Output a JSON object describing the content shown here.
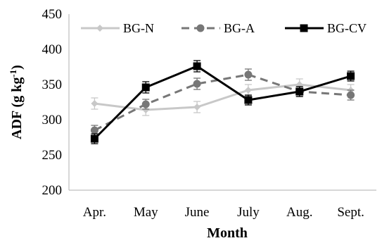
{
  "chart_data": {
    "type": "line",
    "title": "",
    "xlabel": "Month",
    "ylabel": "ADF (g kg",
    "ylabel_sup": "-1",
    "ylabel_end": ")",
    "categories": [
      "Apr.",
      "May",
      "June",
      "July",
      "Aug.",
      "Sept."
    ],
    "ylim": [
      200,
      450
    ],
    "yticks": [
      "200",
      "250",
      "300",
      "350",
      "400",
      "450"
    ],
    "grid": false,
    "legend_position": "top",
    "series": [
      {
        "name": "BG-N",
        "values": [
          323,
          314,
          318,
          342,
          350,
          342
        ],
        "errors": [
          8,
          8,
          8,
          8,
          8,
          8
        ],
        "color": "#c8c8c8",
        "line_style": "solid",
        "marker": "diamond"
      },
      {
        "name": "BG-A",
        "values": [
          285,
          322,
          351,
          364,
          340,
          335
        ],
        "errors": [
          7,
          7,
          8,
          8,
          7,
          7
        ],
        "color": "#777777",
        "line_style": "dashed",
        "marker": "circle"
      },
      {
        "name": "BG-CV",
        "values": [
          273,
          346,
          376,
          328,
          340,
          362
        ],
        "errors": [
          7,
          8,
          8,
          7,
          7,
          7
        ],
        "color": "#000000",
        "line_style": "solid",
        "marker": "square"
      }
    ]
  }
}
